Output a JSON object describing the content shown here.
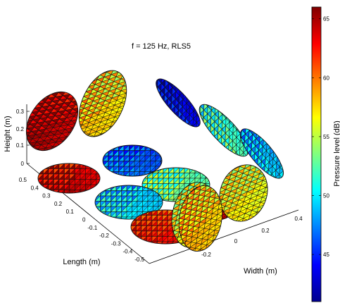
{
  "chart_data": {
    "type": "3d-surface",
    "title": "f = 125 Hz, RLS5",
    "xlabel": "Width (m)",
    "ylabel": "Length (m)",
    "zlabel": "Height (m)",
    "xticks": [
      "-0.2",
      "0",
      "0.2",
      "0.4"
    ],
    "yticks": [
      "-0.5",
      "-0.4",
      "-0.3",
      "-0.2",
      "-0.1",
      "0",
      "0.1",
      "0.2",
      "0.3",
      "0.4",
      "0.5"
    ],
    "zticks": [
      "0",
      "0.1",
      "0.2",
      "0.3"
    ],
    "colorbar": {
      "label": "Pressure level (dB)",
      "range": [
        41,
        66
      ],
      "ticks": [
        "45",
        "50",
        "55",
        "60",
        "65"
      ],
      "colormap": "jet"
    },
    "surfaces": [
      {
        "id": "s1",
        "level": 64.5
      },
      {
        "id": "s2",
        "level": 57.5
      },
      {
        "id": "s3",
        "level": 43.5
      },
      {
        "id": "s4",
        "level": 51.5
      },
      {
        "id": "s5",
        "level": 46.5
      },
      {
        "id": "s6",
        "level": 48.5
      },
      {
        "id": "s7",
        "level": 64.0
      },
      {
        "id": "s8",
        "level": 53.0
      },
      {
        "id": "s9",
        "level": 49.5
      },
      {
        "id": "s10",
        "level": 56.5
      },
      {
        "id": "s11",
        "level": 62.5
      },
      {
        "id": "s12",
        "level": 56.0
      },
      {
        "id": "s13",
        "level": 64.5
      },
      {
        "id": "s14",
        "level": 58.0
      }
    ]
  }
}
